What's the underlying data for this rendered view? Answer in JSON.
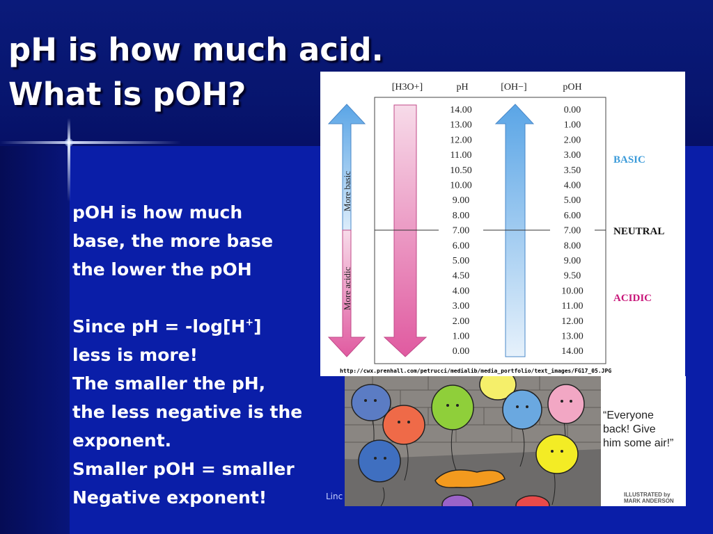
{
  "slide": {
    "title_lines": [
      "pH is how much acid.",
      "What is pOH?"
    ],
    "body_lines": [
      "pOH is how much",
      "base, the more base",
      "the lower the pOH",
      "",
      "Since pH = -log[H",
      "less is more!",
      "The smaller the pH,",
      "the less negative is the",
      "exponent.",
      "Smaller pOH = smaller",
      "Negative exponent!"
    ],
    "superscript_plus": "+",
    "closing_bracket": "]",
    "footer": "Linc"
  },
  "chart": {
    "headers": {
      "h3o": "[H3O+]",
      "ph": "pH",
      "oh": "[OH−]",
      "poh": "pOH"
    },
    "ph_values": [
      "14.00",
      "13.00",
      "12.00",
      "11.00",
      "10.50",
      "10.00",
      "9.00",
      "8.00",
      "7.00",
      "6.00",
      "5.00",
      "4.50",
      "4.00",
      "3.00",
      "2.00",
      "1.00",
      "0.00"
    ],
    "poh_values": [
      "0.00",
      "1.00",
      "2.00",
      "3.00",
      "3.50",
      "4.00",
      "5.00",
      "6.00",
      "7.00",
      "8.00",
      "9.00",
      "9.50",
      "10.00",
      "11.00",
      "12.00",
      "13.00",
      "14.00"
    ],
    "more_basic": "More basic",
    "more_acidic": "More acidic",
    "basic_label": "BASIC",
    "neutral_label": "NEUTRAL",
    "acidic_label": "ACIDIC",
    "colors": {
      "basic": "#3a9ad9",
      "neutral": "#111111",
      "acidic": "#c8177a",
      "blue_arrow": "#7ab8ec",
      "pink_arrow": "#e56aa8"
    },
    "source_url": "http://cwx.prenhall.com/petrucci/medialib/media_portfolio/text_images/FG17_05.JPG"
  },
  "cartoon": {
    "caption_lines": [
      "“Everyone",
      "back! Give",
      "him some air!”"
    ],
    "credit_lines": [
      "ILLUSTRATED by",
      "MARK ANDERSON"
    ]
  }
}
